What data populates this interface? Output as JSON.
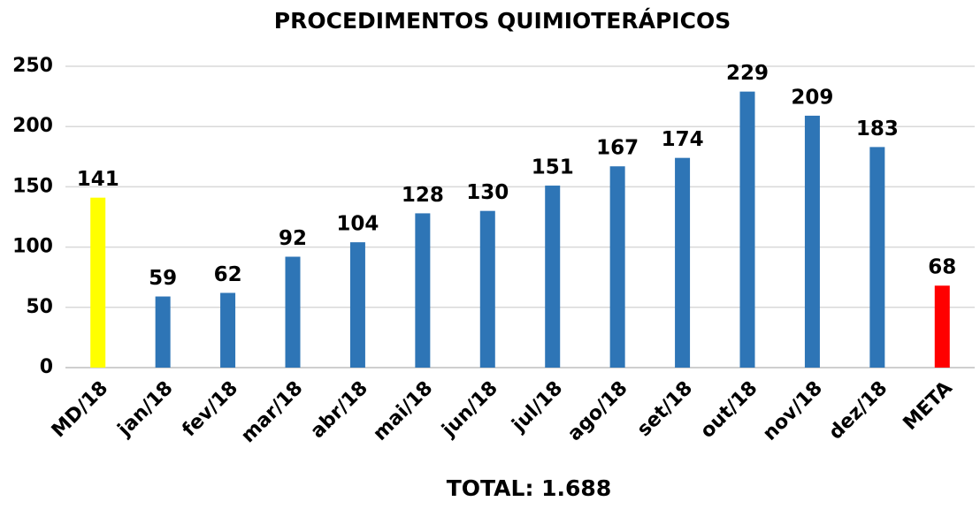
{
  "chart_data": {
    "type": "bar",
    "title": "PROCEDIMENTOS QUIMIOTERÁPICOS",
    "xlabel": "TOTAL: 1.688",
    "categories": [
      "MD/18",
      "jan/18",
      "fev/18",
      "mar/18",
      "abr/18",
      "mai/18",
      "jun/18",
      "jul/18",
      "ago/18",
      "set/18",
      "out/18",
      "nov/18",
      "dez/18",
      "META"
    ],
    "values": [
      141,
      59,
      62,
      92,
      104,
      128,
      130,
      151,
      167,
      174,
      229,
      209,
      183,
      68
    ],
    "colors": [
      "#ffff00",
      "#2e75b6",
      "#2e75b6",
      "#2e75b6",
      "#2e75b6",
      "#2e75b6",
      "#2e75b6",
      "#2e75b6",
      "#2e75b6",
      "#2e75b6",
      "#2e75b6",
      "#2e75b6",
      "#2e75b6",
      "#ff0000"
    ],
    "ylim": [
      0,
      250
    ],
    "yticks": [
      0,
      50,
      100,
      150,
      200,
      250
    ],
    "grid": true
  }
}
